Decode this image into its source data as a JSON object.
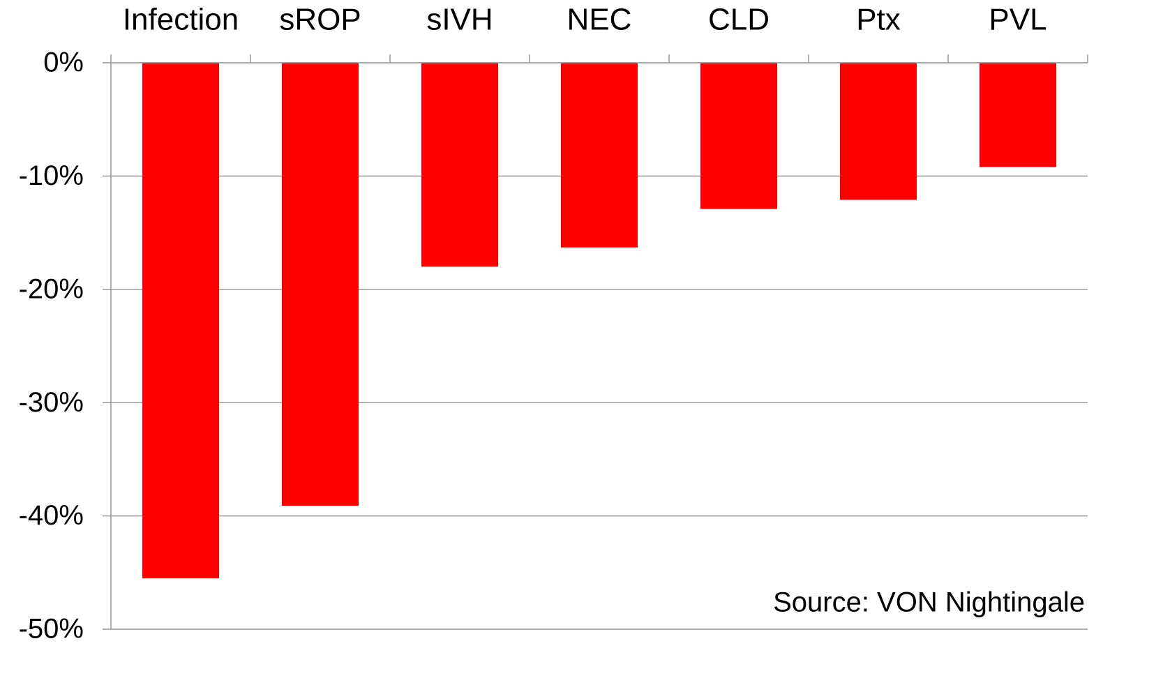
{
  "chart_data": {
    "type": "bar",
    "categories": [
      "Infection",
      "sROP",
      "sIVH",
      "NEC",
      "CLD",
      "Ptx",
      "PVL"
    ],
    "values": [
      -45.5,
      -39.1,
      -18.0,
      -16.3,
      -12.9,
      -12.1,
      -9.2
    ],
    "color": "#ff0000",
    "ylim": [
      -50,
      0
    ],
    "yticks": [
      {
        "value": 0,
        "label": "0%"
      },
      {
        "value": -10,
        "label": "-10%"
      },
      {
        "value": -20,
        "label": "-20%"
      },
      {
        "value": -30,
        "label": "-30%"
      },
      {
        "value": -40,
        "label": "-40%"
      },
      {
        "value": -50,
        "label": "-50%"
      }
    ],
    "grid": true,
    "annotation": "Source: VON Nightingale"
  }
}
